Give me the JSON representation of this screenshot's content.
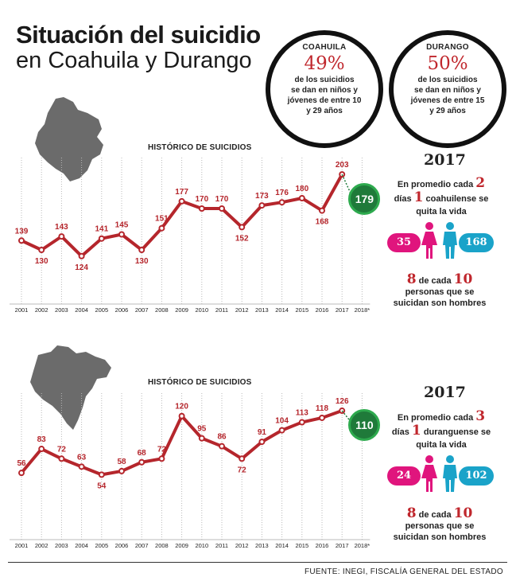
{
  "header": {
    "title_bold": "Situación del suicidio",
    "title_light": "en Coahuila y Durango"
  },
  "circles": [
    {
      "name": "COAHUILA",
      "pct": "49%",
      "line1": "de los suicidios",
      "line2": "se dan en niños y",
      "line3": "jóvenes de entre 10",
      "line4": "y 29 años"
    },
    {
      "name": "DURANGO",
      "pct": "50%",
      "line1": "de los suicidios",
      "line2": "se dan en niños y",
      "line3": "jóvenes de entre 15",
      "line4": "y 29 años"
    }
  ],
  "colors": {
    "line": "#b5262c",
    "label": "#b5262c",
    "badge": "#1f7a3a",
    "pink": "#e0157d",
    "blue": "#1aa3c9",
    "map": "#6b6b6b"
  },
  "chart_data": [
    {
      "type": "line",
      "title": "HISTÓRICO DE SUICIDIOS",
      "categories": [
        "2001",
        "2002",
        "2003",
        "2004",
        "2005",
        "2006",
        "2007",
        "2008",
        "2009",
        "2010",
        "2011",
        "2012",
        "2013",
        "2014",
        "2015",
        "2016",
        "2017",
        "2018*"
      ],
      "values": [
        139,
        130,
        143,
        124,
        141,
        145,
        130,
        151,
        177,
        170,
        170,
        152,
        173,
        176,
        180,
        168,
        203
      ],
      "labels": [
        "139",
        "130",
        "143",
        "124",
        "141",
        "145",
        "130",
        "151",
        "177",
        "170",
        "170",
        "152",
        "173",
        "176",
        "180",
        "168",
        "203"
      ],
      "projection": {
        "category": "2018*",
        "value": 179,
        "label": "179"
      },
      "ylim": [
        110,
        210
      ],
      "grid": "vertical-dotted"
    },
    {
      "type": "line",
      "title": "HISTÓRICO DE SUICIDIOS",
      "categories": [
        "2001",
        "2002",
        "2003",
        "2004",
        "2005",
        "2006",
        "2007",
        "2008",
        "2009",
        "2010",
        "2011",
        "2012",
        "2013",
        "2014",
        "2015",
        "2016",
        "2017",
        "2018*"
      ],
      "values": [
        56,
        83,
        72,
        63,
        54,
        58,
        68,
        72,
        120,
        95,
        86,
        72,
        91,
        104,
        113,
        118,
        126
      ],
      "labels": [
        "56",
        "83",
        "72",
        "63",
        "54",
        "58",
        "68",
        "72",
        "120",
        "95",
        "86",
        "72",
        "91",
        "104",
        "113",
        "118",
        "126"
      ],
      "projection": {
        "category": "2018*",
        "value": 110,
        "label": "110"
      },
      "ylim": [
        40,
        135
      ],
      "grid": "vertical-dotted"
    }
  ],
  "panels": [
    {
      "year": "2017",
      "avg_a": "En promedio cada",
      "avg_n1": "2",
      "avg_b": "días",
      "avg_n2": "1",
      "avg_c": "coahuilense se",
      "avg_d": "quita la vida",
      "women": "35",
      "men": "168",
      "ratio_n1": "8",
      "ratio_a": "de cada",
      "ratio_n2": "10",
      "ratio_b": "personas que se",
      "ratio_c": "suicidan son hombres"
    },
    {
      "year": "2017",
      "avg_a": "En promedio cada",
      "avg_n1": "3",
      "avg_b": "días",
      "avg_n2": "1",
      "avg_c": "duranguense se",
      "avg_d": "quita la vida",
      "women": "24",
      "men": "102",
      "ratio_n1": "8",
      "ratio_a": "de cada",
      "ratio_n2": "10",
      "ratio_b": "personas que se",
      "ratio_c": "suicidan son hombres"
    }
  ],
  "footer": "FUENTE: INEGI, FISCALÍA GENERAL DEL ESTADO"
}
